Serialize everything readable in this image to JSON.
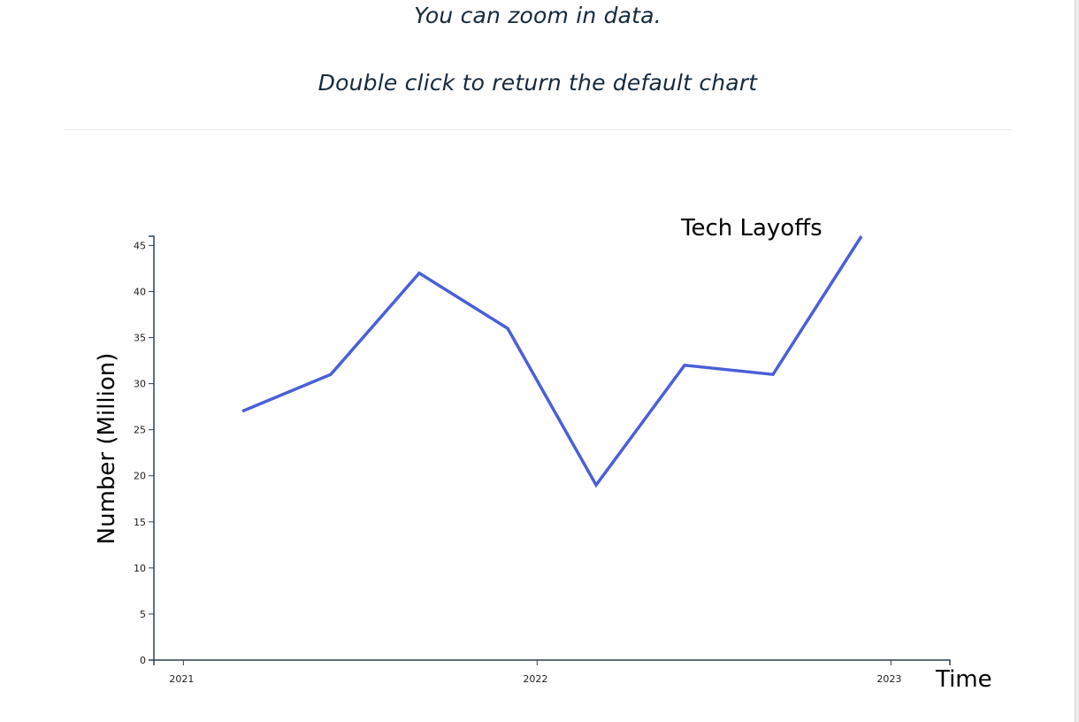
{
  "header": {
    "line1": "You can zoom in data.",
    "line2": "Double click to return the default chart"
  },
  "chart_data": {
    "type": "line",
    "title": "Tech Layoffs",
    "xlabel": "Time",
    "ylabel": "Number (Million)",
    "x": [
      "2021-03",
      "2021-06",
      "2021-09",
      "2021-12",
      "2022-03",
      "2022-06",
      "2022-09",
      "2022-12"
    ],
    "series": [
      {
        "values": [
          27,
          31,
          42,
          36,
          19,
          32,
          31,
          46
        ]
      }
    ],
    "x_ticks": [
      {
        "label": "2021",
        "date": "2021-01"
      },
      {
        "label": "2022",
        "date": "2022-01"
      },
      {
        "label": "2023",
        "date": "2023-01"
      }
    ],
    "xlim": [
      "2020-12",
      "2023-03"
    ],
    "y_ticks": [
      0,
      5,
      10,
      15,
      20,
      25,
      30,
      35,
      40,
      45
    ],
    "ylim": [
      0,
      46
    ],
    "grid": false,
    "line_color": "#4a5fd8",
    "axis_color": "#2b4055"
  }
}
